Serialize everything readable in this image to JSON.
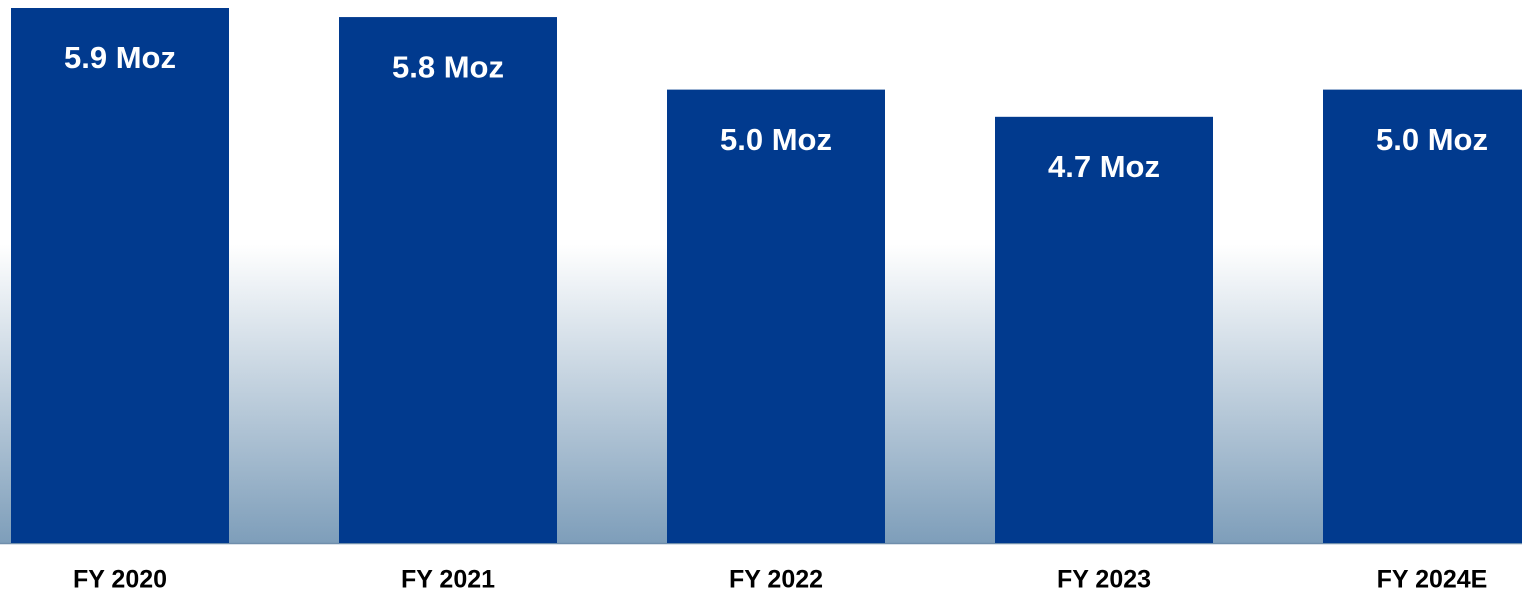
{
  "chart_data": {
    "type": "bar",
    "categories": [
      "FY 2020",
      "FY 2021",
      "FY 2022",
      "FY 2023",
      "FY 2024E"
    ],
    "values": [
      5.9,
      5.8,
      5.0,
      4.7,
      5.0
    ],
    "value_labels": [
      "5.9 Moz",
      "5.8 Moz",
      "5.0 Moz",
      "4.7 Moz",
      "5.0 Moz"
    ],
    "color": "#013a8e"
  }
}
